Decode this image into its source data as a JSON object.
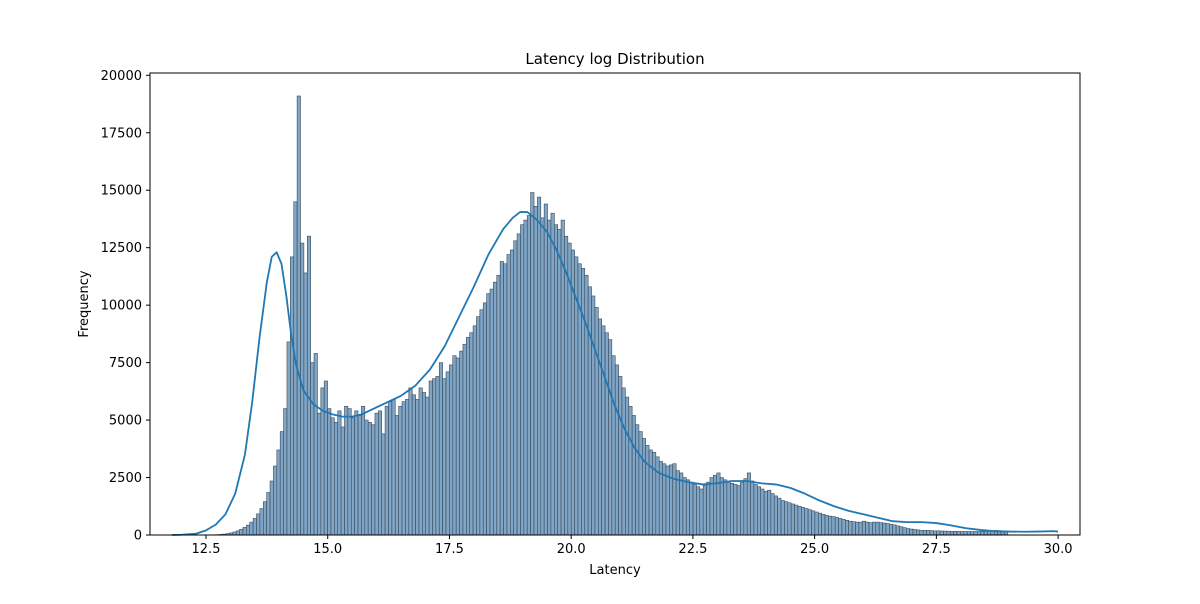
{
  "chart_data": {
    "type": "bar",
    "title": "Latency log Distribution",
    "xlabel": "Latency",
    "ylabel": "Frequency",
    "xlim": [
      11.35,
      30.45
    ],
    "ylim": [
      0,
      20100
    ],
    "x_ticks": [
      12.5,
      15.0,
      17.5,
      20.0,
      22.5,
      25.0,
      27.5,
      30.0
    ],
    "x_tick_labels": [
      "12.5",
      "15.0",
      "17.5",
      "20.0",
      "22.5",
      "25.0",
      "27.5",
      "30.0"
    ],
    "y_ticks": [
      0,
      2500,
      5000,
      7500,
      10000,
      12500,
      15000,
      17500,
      20000
    ],
    "y_tick_labels": [
      "0",
      "2500",
      "5000",
      "7500",
      "10000",
      "12500",
      "15000",
      "17500",
      "20000"
    ],
    "grid": false,
    "legend": "none",
    "colors": {
      "bar_fill": "#7fa5c7",
      "bar_edge": "#3b4a58",
      "kde_line": "#1f77b4"
    },
    "bins": {
      "start": 11.8,
      "width": 0.0695,
      "counts": [
        0,
        0,
        0,
        0,
        0,
        0,
        0,
        0,
        0,
        0,
        0,
        5,
        10,
        15,
        25,
        40,
        60,
        90,
        130,
        180,
        250,
        330,
        430,
        560,
        720,
        920,
        1150,
        1450,
        1850,
        2350,
        3000,
        3700,
        4500,
        5500,
        8400,
        12100,
        14500,
        19100,
        12700,
        11400,
        13000,
        7500,
        7900,
        5300,
        6400,
        6700,
        5500,
        5100,
        4900,
        5400,
        4700,
        5600,
        5500,
        5100,
        5400,
        5200,
        5600,
        5000,
        4900,
        4800,
        5300,
        5400,
        4400,
        5600,
        5800,
        5900,
        5200,
        5600,
        5800,
        5900,
        6400,
        6100,
        5900,
        6400,
        6200,
        6000,
        6700,
        6800,
        6900,
        7500,
        6800,
        7100,
        7400,
        7800,
        7700,
        8000,
        8300,
        8600,
        8800,
        9100,
        9500,
        9800,
        10100,
        10500,
        10700,
        11000,
        11300,
        11900,
        11800,
        12200,
        12400,
        12800,
        13100,
        13500,
        13700,
        13900,
        14900,
        14300,
        14700,
        13800,
        14400,
        13700,
        14000,
        13500,
        13300,
        13700,
        13000,
        12700,
        12400,
        12100,
        11800,
        11600,
        11300,
        10800,
        10400,
        9900,
        9400,
        9100,
        8800,
        8500,
        7800,
        7400,
        6900,
        6400,
        6000,
        5600,
        5200,
        4800,
        4500,
        4200,
        3900,
        3700,
        3600,
        3400,
        3200,
        3100,
        3000,
        3050,
        3100,
        2800,
        2700,
        2500,
        2400,
        2300,
        2200,
        2100,
        2000,
        2150,
        2300,
        2500,
        2600,
        2700,
        2500,
        2400,
        2300,
        2250,
        2200,
        2150,
        2300,
        2450,
        2700,
        2350,
        2200,
        2100,
        2000,
        1900,
        1950,
        1800,
        1700,
        1600,
        1500,
        1450,
        1400,
        1350,
        1300,
        1250,
        1200,
        1150,
        1100,
        1050,
        1000,
        950,
        900,
        850,
        820,
        800,
        760,
        720,
        680,
        640,
        600,
        580,
        560,
        560,
        600,
        560,
        540,
        560,
        560,
        540,
        520,
        500,
        470,
        440,
        400,
        360,
        320,
        280,
        260,
        240,
        220,
        200,
        200,
        200,
        190,
        180,
        180,
        175,
        170,
        165,
        160,
        160,
        155,
        150,
        150,
        150,
        150,
        150,
        150,
        160,
        160,
        170,
        180,
        200,
        190,
        170,
        150
      ]
    },
    "kde": {
      "x": [
        11.8,
        12.0,
        12.3,
        12.5,
        12.7,
        12.9,
        13.1,
        13.3,
        13.45,
        13.6,
        13.75,
        13.85,
        13.95,
        14.05,
        14.15,
        14.25,
        14.35,
        14.5,
        14.7,
        14.9,
        15.1,
        15.3,
        15.5,
        15.7,
        15.9,
        16.2,
        16.5,
        16.8,
        17.1,
        17.4,
        17.7,
        18.0,
        18.3,
        18.6,
        18.8,
        18.95,
        19.1,
        19.3,
        19.5,
        19.7,
        19.9,
        20.1,
        20.3,
        20.5,
        20.7,
        20.9,
        21.1,
        21.3,
        21.5,
        21.8,
        22.1,
        22.4,
        22.7,
        23.0,
        23.3,
        23.6,
        23.9,
        24.2,
        24.5,
        24.8,
        25.1,
        25.4,
        25.7,
        26.0,
        26.3,
        26.6,
        26.9,
        27.2,
        27.5,
        27.8,
        28.1,
        28.4,
        28.7,
        29.0,
        29.3,
        29.6,
        29.9,
        30.0
      ],
      "y": [
        0,
        10,
        60,
        200,
        450,
        900,
        1800,
        3500,
        5800,
        8600,
        11000,
        12100,
        12300,
        11800,
        10400,
        8700,
        7400,
        6300,
        5700,
        5400,
        5250,
        5150,
        5150,
        5250,
        5450,
        5750,
        6050,
        6500,
        7200,
        8200,
        9500,
        10800,
        12200,
        13300,
        13800,
        14050,
        14050,
        13700,
        13200,
        12400,
        11400,
        10300,
        9200,
        8000,
        6800,
        5600,
        4600,
        3800,
        3200,
        2700,
        2450,
        2300,
        2200,
        2250,
        2350,
        2350,
        2250,
        2200,
        2050,
        1800,
        1500,
        1250,
        1050,
        900,
        750,
        600,
        560,
        560,
        520,
        420,
        300,
        220,
        170,
        150,
        140,
        150,
        170,
        150
      ]
    }
  }
}
